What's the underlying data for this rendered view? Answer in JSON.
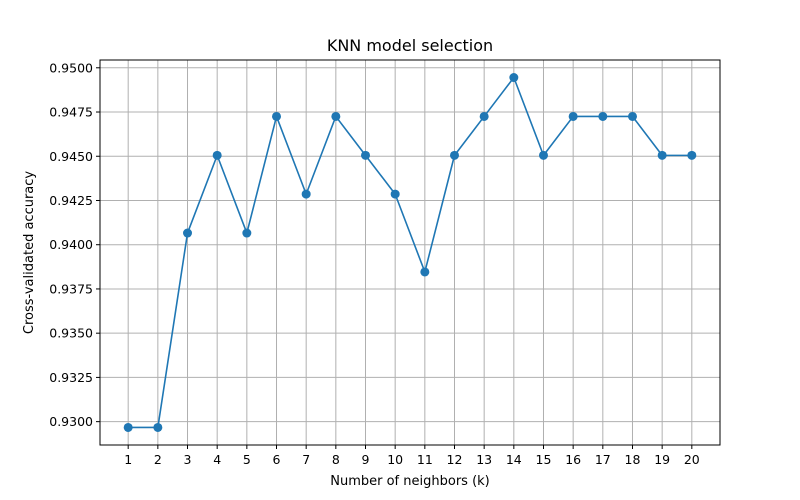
{
  "chart_data": {
    "type": "line",
    "title": "KNN model selection",
    "xlabel": "Number of neighbors (k)",
    "ylabel": "Cross-validated accuracy",
    "x": [
      1,
      2,
      3,
      4,
      5,
      6,
      7,
      8,
      9,
      10,
      11,
      12,
      13,
      14,
      15,
      16,
      17,
      18,
      19,
      20
    ],
    "series": [
      {
        "values": [
          0.92967,
          0.92967,
          0.94066,
          0.94505,
          0.94066,
          0.94725,
          0.94286,
          0.94725,
          0.94505,
          0.94286,
          0.93846,
          0.94505,
          0.94725,
          0.94945,
          0.94505,
          0.94725,
          0.94725,
          0.94725,
          0.94505,
          0.94505
        ],
        "color": "#1f77b4",
        "marker": "circle"
      }
    ],
    "xticks": [
      "1",
      "2",
      "3",
      "4",
      "5",
      "6",
      "7",
      "8",
      "9",
      "10",
      "11",
      "12",
      "13",
      "14",
      "15",
      "16",
      "17",
      "18",
      "19",
      "20"
    ],
    "yticks": [
      0.93,
      0.9325,
      0.935,
      0.9375,
      0.94,
      0.9425,
      0.945,
      0.9475,
      0.95
    ],
    "ytick_labels": [
      "0.9300",
      "0.9325",
      "0.9350",
      "0.9375",
      "0.9400",
      "0.9425",
      "0.9450",
      "0.9475",
      "0.9500"
    ],
    "xlim": [
      0.05,
      20.95
    ],
    "ylim": [
      0.92868,
      0.95044
    ],
    "grid": true,
    "legend": false
  }
}
